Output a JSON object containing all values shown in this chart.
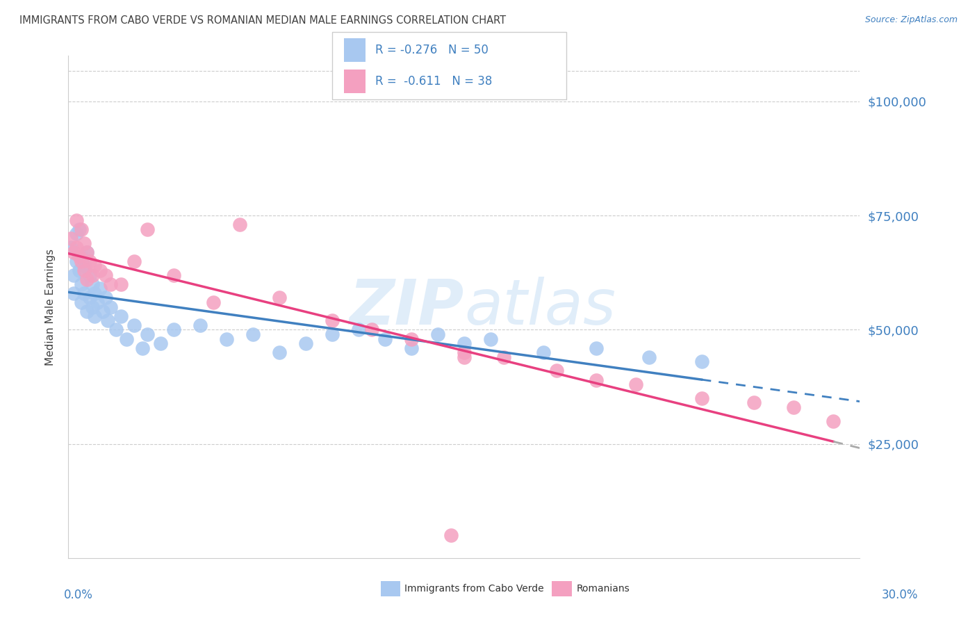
{
  "title": "IMMIGRANTS FROM CABO VERDE VS ROMANIAN MEDIAN MALE EARNINGS CORRELATION CHART",
  "source": "Source: ZipAtlas.com",
  "ylabel": "Median Male Earnings",
  "xmin": 0.0,
  "xmax": 0.3,
  "ymin": 0,
  "ymax": 110000,
  "legend_r1": "-0.276",
  "legend_n1": "50",
  "legend_r2": "-0.611",
  "legend_n2": "38",
  "color_blue_fill": "#A8C8F0",
  "color_pink_fill": "#F4A0C0",
  "color_blue_line": "#4080C0",
  "color_pink_line": "#E84080",
  "color_blue_label": "#4080C0",
  "title_color": "#404040",
  "background_color": "#FFFFFF",
  "cabo_verde_x": [
    0.001,
    0.002,
    0.002,
    0.003,
    0.003,
    0.004,
    0.004,
    0.005,
    0.005,
    0.005,
    0.006,
    0.006,
    0.007,
    0.007,
    0.008,
    0.008,
    0.009,
    0.009,
    0.01,
    0.01,
    0.011,
    0.012,
    0.013,
    0.014,
    0.015,
    0.016,
    0.018,
    0.02,
    0.022,
    0.025,
    0.028,
    0.03,
    0.035,
    0.04,
    0.05,
    0.06,
    0.07,
    0.08,
    0.09,
    0.1,
    0.11,
    0.12,
    0.13,
    0.14,
    0.15,
    0.16,
    0.18,
    0.2,
    0.22,
    0.24
  ],
  "cabo_verde_y": [
    68000,
    62000,
    58000,
    71000,
    65000,
    63000,
    72000,
    66000,
    60000,
    56000,
    64000,
    58000,
    67000,
    54000,
    62000,
    57000,
    60000,
    55000,
    58000,
    53000,
    56000,
    59000,
    54000,
    57000,
    52000,
    55000,
    50000,
    53000,
    48000,
    51000,
    46000,
    49000,
    47000,
    50000,
    51000,
    48000,
    49000,
    45000,
    47000,
    49000,
    50000,
    48000,
    46000,
    49000,
    47000,
    48000,
    45000,
    46000,
    44000,
    43000
  ],
  "romanian_x": [
    0.001,
    0.002,
    0.003,
    0.003,
    0.004,
    0.005,
    0.005,
    0.006,
    0.006,
    0.007,
    0.007,
    0.008,
    0.009,
    0.01,
    0.012,
    0.014,
    0.016,
    0.02,
    0.025,
    0.03,
    0.04,
    0.055,
    0.065,
    0.08,
    0.1,
    0.115,
    0.13,
    0.15,
    0.165,
    0.185,
    0.2,
    0.215,
    0.24,
    0.26,
    0.275,
    0.29,
    0.15,
    0.145
  ],
  "romanian_y": [
    70000,
    67000,
    74000,
    68000,
    66000,
    72000,
    65000,
    69000,
    63000,
    67000,
    61000,
    65000,
    62000,
    64000,
    63000,
    62000,
    60000,
    60000,
    65000,
    72000,
    62000,
    56000,
    73000,
    57000,
    52000,
    50000,
    48000,
    45000,
    44000,
    41000,
    39000,
    38000,
    35000,
    34000,
    33000,
    30000,
    44000,
    5000
  ],
  "ytick_positions": [
    25000,
    50000,
    75000,
    100000
  ],
  "ytick_labels": [
    "$25,000",
    "$50,000",
    "$75,000",
    "$100,000"
  ]
}
